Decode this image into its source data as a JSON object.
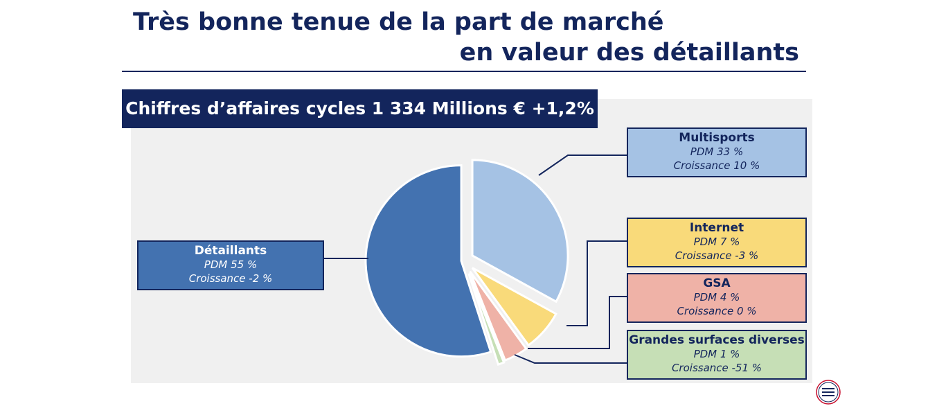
{
  "title_line1": "Très bonne tenue de la part de marché",
  "title_line2": "en valeur des détaillants",
  "chart_data": {
    "type": "pie",
    "title": "Chiffres d’affaires cycles 1 334 Millions € +1,2%",
    "slices": [
      {
        "name": "Multisports",
        "value": 33,
        "pdm_label": "PDM 33 %",
        "croissance_label": "Croissance  10 %",
        "color": "#a5c2e4"
      },
      {
        "name": "Internet",
        "value": 7,
        "pdm_label": "PDM 7 %",
        "croissance_label": "Croissance  -3 %",
        "color": "#f9da7a"
      },
      {
        "name": "GSA",
        "value": 4,
        "pdm_label": "PDM 4 %",
        "croissance_label": "Croissance  0 %",
        "color": "#efb2a7"
      },
      {
        "name": "Grandes surfaces diverses",
        "value": 1,
        "pdm_label": "PDM 1 %",
        "croissance_label": "Croissance  -51 %",
        "color": "#c6dfb6"
      },
      {
        "name": "Détaillants",
        "value": 55,
        "pdm_label": "PDM 55 %",
        "croissance_label": "Croissance  -2 %",
        "color": "#4372b0"
      }
    ]
  },
  "colors": {
    "navy": "#13255c",
    "panel": "#f0f0f0"
  },
  "logo_icon": "federation-logo-icon"
}
